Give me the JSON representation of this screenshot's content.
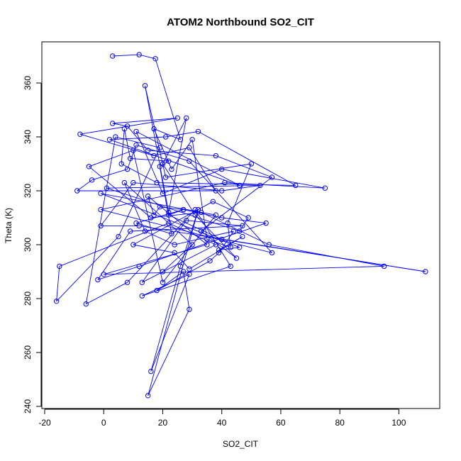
{
  "chart_data": {
    "type": "line",
    "title": "ATOM2 Northbound SO2_CIT",
    "xlabel": "SO2_CIT",
    "ylabel": "Theta (K)",
    "xlim": [
      -20,
      110
    ],
    "ylim": [
      240,
      372
    ],
    "x_ticks": [
      -20,
      0,
      20,
      40,
      60,
      80,
      100
    ],
    "y_ticks": [
      240,
      260,
      280,
      300,
      320,
      340,
      360
    ],
    "grid": false,
    "series": [
      {
        "color": "#0000ff",
        "markers": "open-circle",
        "points": [
          [
            3,
            370
          ],
          [
            12,
            370.5
          ],
          [
            17.5,
            369
          ],
          [
            26,
            339
          ],
          [
            17,
            343
          ],
          [
            23,
            328
          ],
          [
            30,
            339
          ],
          [
            35,
            302
          ],
          [
            43,
            299
          ],
          [
            42,
            308
          ],
          [
            50,
            330
          ],
          [
            21,
            325
          ],
          [
            14,
            359
          ],
          [
            22,
            312
          ],
          [
            28,
            347
          ],
          [
            20,
            330
          ],
          [
            31,
            311
          ],
          [
            45,
            295
          ],
          [
            33,
            305
          ],
          [
            57,
            325
          ],
          [
            38,
            333
          ],
          [
            15,
            335
          ],
          [
            8,
            344
          ],
          [
            3,
            345
          ],
          [
            25,
            347
          ],
          [
            -8,
            341
          ],
          [
            17,
            333
          ],
          [
            29,
            336
          ],
          [
            38,
            320
          ],
          [
            -9,
            320
          ],
          [
            -4,
            324
          ],
          [
            8,
            328
          ],
          [
            11,
            337
          ],
          [
            29,
            331
          ],
          [
            57,
            297
          ],
          [
            -1,
            313
          ],
          [
            41,
            323
          ],
          [
            75,
            321
          ],
          [
            40,
            328
          ],
          [
            20,
            319
          ],
          [
            11,
            342
          ],
          [
            46,
            322
          ],
          [
            2,
            339
          ],
          [
            21,
            340
          ],
          [
            32,
            342
          ],
          [
            65,
            322
          ],
          [
            18,
            323
          ],
          [
            6,
            330
          ],
          [
            7,
            343
          ],
          [
            9,
            332
          ],
          [
            22,
            331
          ],
          [
            19,
            329
          ],
          [
            23,
            304
          ],
          [
            11,
            308
          ],
          [
            27,
            313
          ],
          [
            22,
            311
          ],
          [
            40,
            302
          ],
          [
            109,
            290
          ],
          [
            12,
            307
          ],
          [
            -1,
            307
          ],
          [
            10,
            323
          ],
          [
            40,
            320
          ],
          [
            53,
            322
          ],
          [
            1,
            321
          ],
          [
            46,
            305
          ],
          [
            49,
            310
          ],
          [
            37,
            316
          ],
          [
            10,
            300
          ],
          [
            24,
            297
          ],
          [
            29,
            291
          ],
          [
            47,
            303
          ],
          [
            39,
            298
          ],
          [
            46,
            299
          ],
          [
            -1,
            319
          ],
          [
            38,
            311
          ],
          [
            20,
            286
          ],
          [
            10,
            335
          ],
          [
            -5,
            329
          ],
          [
            16,
            310
          ],
          [
            33,
            312
          ],
          [
            56,
            300
          ],
          [
            95,
            292
          ],
          [
            0,
            289
          ],
          [
            35,
            300
          ],
          [
            15,
            318
          ],
          [
            17,
            311
          ],
          [
            19,
            314
          ],
          [
            27,
            313
          ],
          [
            40,
            310
          ],
          [
            55,
            308
          ],
          [
            12,
            292
          ],
          [
            -2,
            287
          ],
          [
            9,
            305
          ],
          [
            47,
            307
          ],
          [
            28,
            309
          ],
          [
            13,
            286
          ],
          [
            38,
            300
          ],
          [
            22,
            308
          ],
          [
            -15,
            292
          ],
          [
            -16,
            279
          ],
          [
            5,
            303
          ],
          [
            19,
            336
          ],
          [
            4,
            340
          ],
          [
            -6,
            278
          ],
          [
            8,
            286
          ],
          [
            31,
            313
          ],
          [
            43,
            292
          ],
          [
            13,
            281
          ],
          [
            29,
            289
          ],
          [
            16,
            253
          ],
          [
            26,
            292
          ],
          [
            32,
            313
          ],
          [
            15,
            244
          ],
          [
            29,
            276
          ],
          [
            27,
            290
          ],
          [
            18,
            283
          ],
          [
            36,
            294
          ],
          [
            39,
            297
          ],
          [
            44,
            305
          ],
          [
            24,
            300
          ],
          [
            14,
            305
          ],
          [
            7,
            323
          ],
          [
            30,
            300
          ],
          [
            20,
            290
          ]
        ]
      }
    ]
  }
}
